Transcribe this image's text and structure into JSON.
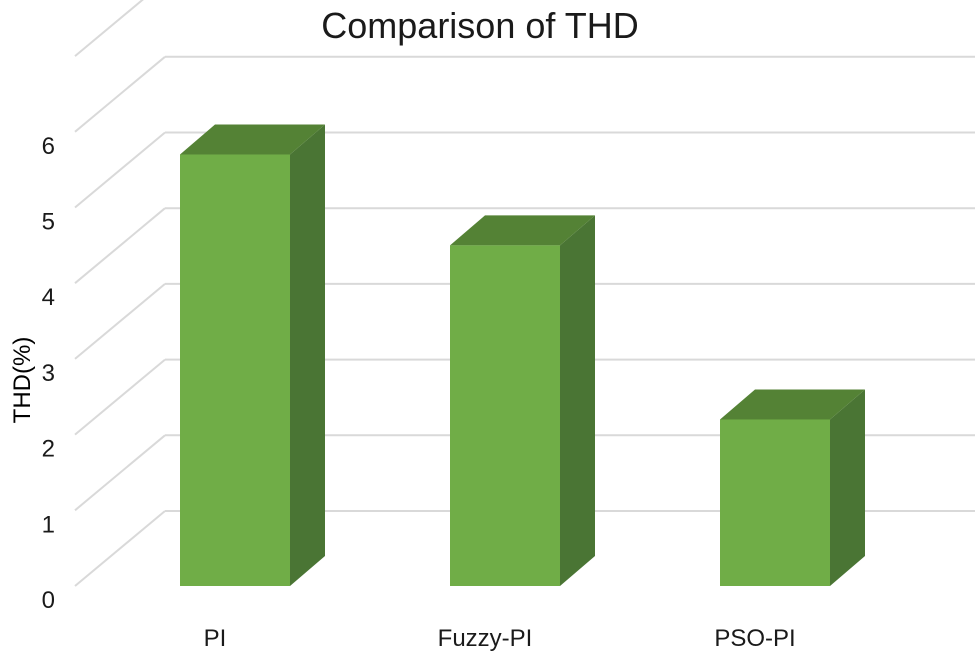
{
  "chart_data": {
    "type": "bar",
    "title": "Comparison of THD",
    "ylabel": "THD(%)",
    "xlabel": "",
    "categories": [
      "PI",
      "Fuzzy-PI",
      "PSO-PI"
    ],
    "values": [
      5.7,
      4.5,
      2.2
    ],
    "ylim": [
      0,
      6
    ],
    "yticks": [
      "0",
      "1",
      "2",
      "3",
      "4",
      "5",
      "6"
    ],
    "grid": true,
    "style_3d": true,
    "colors": {
      "bar_front": "#70ad47",
      "bar_top": "#548235",
      "bar_side": "#4a7534",
      "grid": "#d9d9d9"
    }
  }
}
